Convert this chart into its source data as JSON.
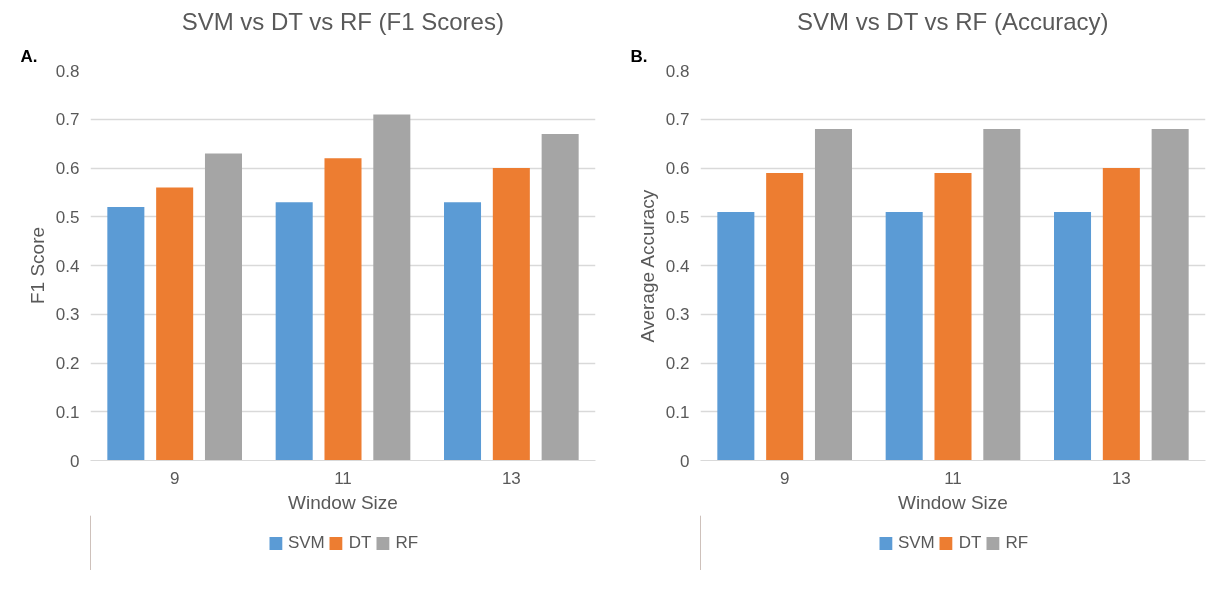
{
  "chart_data": [
    {
      "type": "bar",
      "title": "SVM vs DT vs RF (F1 Scores)",
      "annotations": [
        "A."
      ],
      "xlabel": "Window Size",
      "ylabel": "F1 Score",
      "categories": [
        "9",
        "11",
        "13"
      ],
      "series": [
        {
          "name": "SVM",
          "color": "#5b9bd5",
          "values": [
            0.52,
            0.53,
            0.53
          ]
        },
        {
          "name": "DT",
          "color": "#ed7d31",
          "values": [
            0.56,
            0.62,
            0.6
          ]
        },
        {
          "name": "RF",
          "color": "#a5a5a5",
          "values": [
            0.63,
            0.71,
            0.67
          ]
        }
      ],
      "ylim": [
        0,
        0.8
      ],
      "yticks": [
        0,
        0.1,
        0.2,
        0.3,
        0.4,
        0.5,
        0.6,
        0.7,
        0.8
      ],
      "grid": "y",
      "legend": "bottom"
    },
    {
      "type": "bar",
      "title": "SVM vs DT vs RF (Accuracy)",
      "annotations": [
        "B."
      ],
      "xlabel": "Window Size",
      "ylabel": "Average Accuracy",
      "categories": [
        "9",
        "11",
        "13"
      ],
      "series": [
        {
          "name": "SVM",
          "color": "#5b9bd5",
          "values": [
            0.51,
            0.51,
            0.51
          ]
        },
        {
          "name": "DT",
          "color": "#ed7d31",
          "values": [
            0.59,
            0.59,
            0.6
          ]
        },
        {
          "name": "RF",
          "color": "#a5a5a5",
          "values": [
            0.68,
            0.68,
            0.68
          ]
        }
      ],
      "ylim": [
        0,
        0.8
      ],
      "yticks": [
        0,
        0.1,
        0.2,
        0.3,
        0.4,
        0.5,
        0.6,
        0.7,
        0.8
      ],
      "grid": "y",
      "legend": "bottom"
    }
  ]
}
